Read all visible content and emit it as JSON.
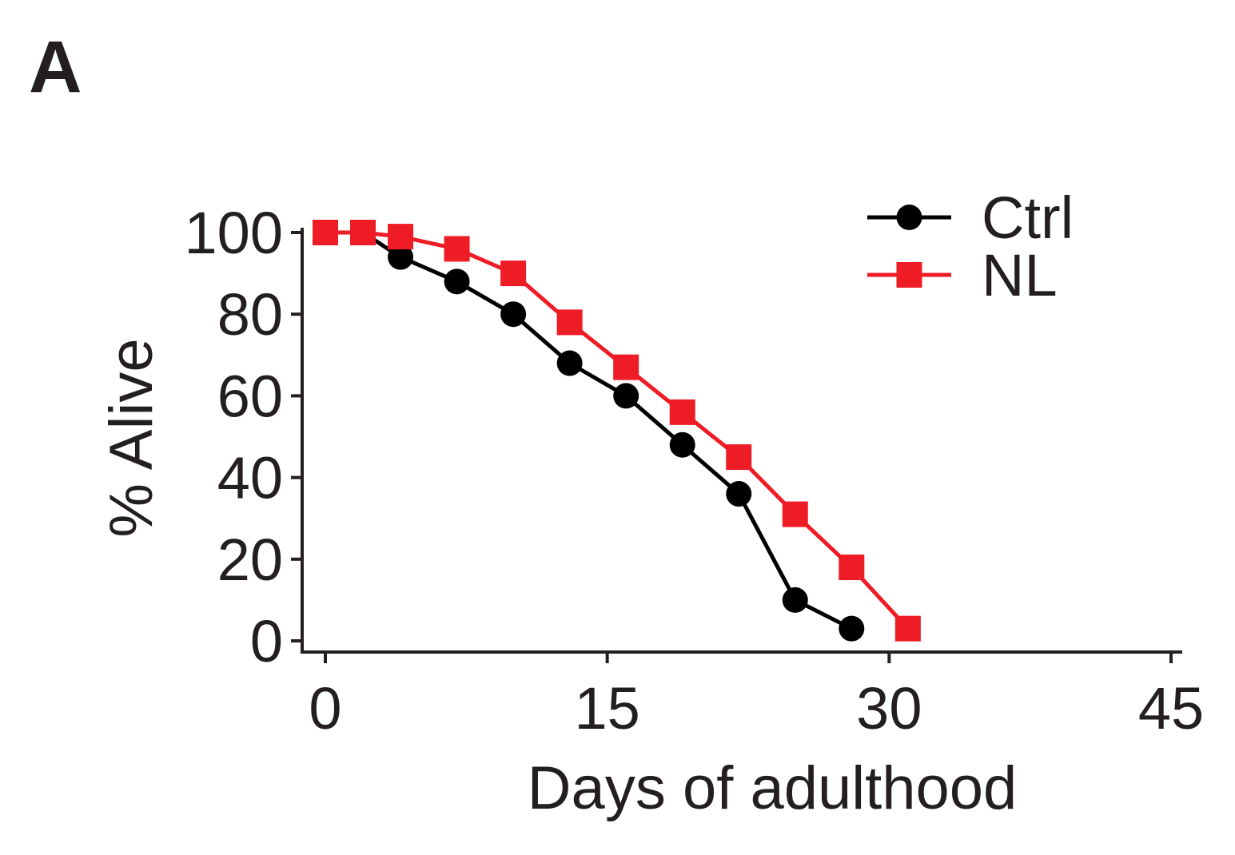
{
  "panel_label": "A",
  "chart_data": {
    "type": "line",
    "title": "",
    "xlabel": "Days of adulthood",
    "ylabel": "% Alive",
    "xlim": [
      0,
      45
    ],
    "ylim": [
      0,
      100
    ],
    "xticks": [
      0,
      15,
      30,
      45
    ],
    "yticks": [
      0,
      20,
      40,
      60,
      80,
      100
    ],
    "xtick_labels": [
      "0",
      "15",
      "30",
      "45"
    ],
    "ytick_labels": [
      "0",
      "20",
      "40",
      "60",
      "80",
      "100"
    ],
    "legend_position": "top-right",
    "grid": false,
    "series": [
      {
        "name": "Ctrl",
        "color": "#000000",
        "marker": "circle",
        "x": [
          0,
          2,
          4,
          7,
          10,
          13,
          16,
          19,
          22,
          25,
          28
        ],
        "y": [
          100,
          100,
          94,
          88,
          80,
          68,
          60,
          48,
          36,
          10,
          3
        ]
      },
      {
        "name": "NL",
        "color": "#ee1c25",
        "marker": "square",
        "x": [
          0,
          2,
          4,
          7,
          10,
          13,
          16,
          19,
          22,
          25,
          28,
          31
        ],
        "y": [
          100,
          100,
          99,
          96,
          90,
          78,
          67,
          56,
          45,
          31,
          18,
          3
        ]
      }
    ]
  }
}
